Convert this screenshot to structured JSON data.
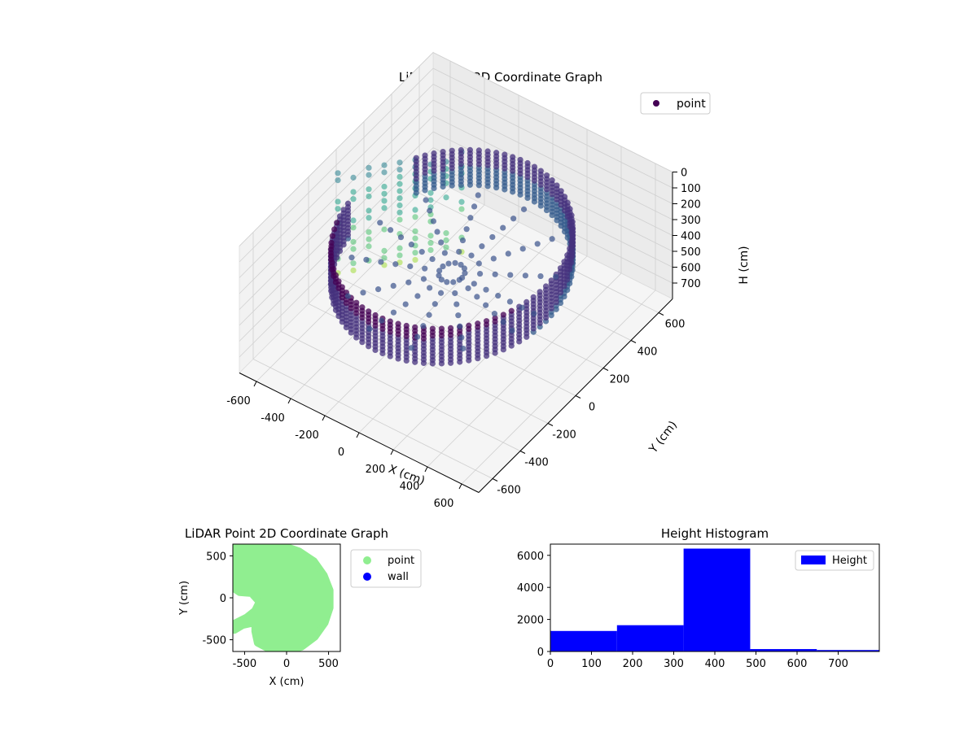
{
  "chart_data": [
    {
      "type": "scatter3d",
      "title": "LiDAR Point 3D Coordinate Graph",
      "xlabel": "X (cm)",
      "ylabel": "Y (cm)",
      "zlabel": "H (cm)",
      "xlim": [
        -700,
        700
      ],
      "ylim": [
        -700,
        700
      ],
      "zlim": [
        0,
        800
      ],
      "z_inverted": true,
      "x_ticks": [
        -600,
        -400,
        -200,
        0,
        200,
        400,
        600
      ],
      "y_ticks": [
        -600,
        -400,
        -200,
        0,
        200,
        400,
        600
      ],
      "z_ticks": [
        0,
        100,
        200,
        300,
        400,
        500,
        600,
        700
      ],
      "colormap": "viridis",
      "legend": {
        "entries": [
          "point"
        ],
        "position": "top-right",
        "marker_color": "#440154"
      },
      "grid": true,
      "series": [
        {
          "name": "point",
          "description_of_shape": "ring-shaped wall of points of radius ~550 cm centered near origin, heights 200-450 cm; sparse columns of points near x=-600..-200, heights 50-700 cm",
          "ring_radius": 550,
          "ring_h_range": [
            220,
            450
          ],
          "sparse_columns_x": [
            -650,
            -600,
            -550,
            -500,
            -450,
            -400,
            -350,
            -300,
            -250
          ],
          "sparse_columns_y": [
            -50,
            0,
            50,
            100,
            150,
            200,
            250,
            300,
            350
          ],
          "sparse_h_range": [
            80,
            750
          ]
        }
      ]
    },
    {
      "type": "scatter",
      "title": "LiDAR Point 2D Coordinate Graph",
      "xlabel": "X (cm)",
      "ylabel": "Y (cm)",
      "xlim": [
        -640,
        640
      ],
      "ylim": [
        -640,
        640
      ],
      "x_ticks": [
        -500,
        0,
        500
      ],
      "y_ticks": [
        -500,
        0,
        500
      ],
      "legend": {
        "entries": [
          {
            "name": "point",
            "color": "#90ee90"
          },
          {
            "name": "wall",
            "color": "#0000ff"
          }
        ],
        "position": "right-outside"
      },
      "series": [
        {
          "name": "point",
          "color": "#90ee90",
          "outline": [
            [
              -620,
              620
            ],
            [
              -300,
              640
            ],
            [
              -50,
              630
            ],
            [
              150,
              560
            ],
            [
              330,
              440
            ],
            [
              450,
              270
            ],
            [
              520,
              90
            ],
            [
              520,
              -120
            ],
            [
              460,
              -300
            ],
            [
              340,
              -470
            ],
            [
              180,
              -590
            ],
            [
              0,
              -640
            ],
            [
              -220,
              -610
            ],
            [
              -350,
              -540
            ],
            [
              -380,
              -400
            ],
            [
              -380,
              -300
            ],
            [
              -520,
              -330
            ],
            [
              -620,
              -390
            ],
            [
              -620,
              -300
            ],
            [
              -480,
              -230
            ],
            [
              -380,
              -150
            ],
            [
              -330,
              -50
            ],
            [
              -420,
              50
            ],
            [
              -560,
              60
            ],
            [
              -620,
              100
            ]
          ]
        },
        {
          "name": "wall",
          "color": "#0000ff",
          "points": []
        }
      ]
    },
    {
      "type": "bar",
      "title": "Height Histogram",
      "xlabel": "",
      "ylabel": "",
      "xlim": [
        0,
        800
      ],
      "ylim": [
        0,
        6700
      ],
      "x_ticks": [
        0,
        100,
        200,
        300,
        400,
        500,
        600,
        700
      ],
      "y_ticks": [
        0,
        2000,
        4000,
        6000
      ],
      "legend": {
        "entries": [
          {
            "name": "Height",
            "color": "#0000ff"
          }
        ],
        "position": "top-right"
      },
      "bins": [
        {
          "x0": 0,
          "x1": 162,
          "count": 1280
        },
        {
          "x0": 162,
          "x1": 324,
          "count": 1640
        },
        {
          "x0": 324,
          "x1": 486,
          "count": 6420
        },
        {
          "x0": 486,
          "x1": 648,
          "count": 150
        },
        {
          "x0": 648,
          "x1": 800,
          "count": 90
        }
      ],
      "color": "#0000ff"
    }
  ]
}
